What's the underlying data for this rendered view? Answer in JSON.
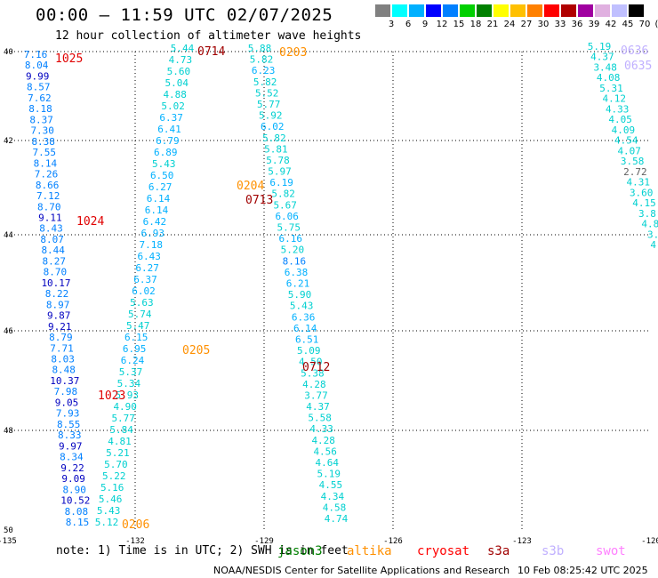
{
  "header": {
    "title": "00:00 – 11:59 UTC 02/07/2025",
    "subtitle": "12 hour collection of altimeter wave heights"
  },
  "colorbar": {
    "colors": [
      "#808080",
      "#00ffff",
      "#00b0ff",
      "#0000ff",
      "#0080ff",
      "#00d000",
      "#008000",
      "#ffff00",
      "#ffc000",
      "#ff8000",
      "#ff0000",
      "#b00000",
      "#a000a0",
      "#e0b0e0",
      "#c0c0ff",
      "#000000"
    ],
    "labels": [
      "3",
      "6",
      "9",
      "12",
      "15",
      "18",
      "21",
      "24",
      "27",
      "30",
      "33",
      "36",
      "39",
      "42",
      "45",
      "70",
      "(ft)"
    ]
  },
  "map": {
    "lon_ticks": [
      "-135",
      "-132",
      "-129",
      "-126",
      "-123",
      "-120"
    ],
    "lat_ticks": [
      "40",
      "42",
      "44",
      "46",
      "48",
      "50"
    ],
    "tracks": [
      {
        "color": "#0000c0",
        "points": [
          {
            "v": "7.16",
            "c": "#0080ff"
          },
          {
            "v": "8.04",
            "c": "#0080ff"
          },
          {
            "v": "9.99",
            "c": "#0000c0"
          },
          {
            "v": "8.57",
            "c": "#0080ff"
          },
          {
            "v": "7.62",
            "c": "#0080ff"
          },
          {
            "v": "8.18",
            "c": "#0080ff"
          },
          {
            "v": "8.37",
            "c": "#0080ff"
          },
          {
            "v": "7.30",
            "c": "#0080ff"
          },
          {
            "v": "8.38",
            "c": "#0080ff"
          },
          {
            "v": "7.55",
            "c": "#0080ff"
          },
          {
            "v": "8.14",
            "c": "#0080ff"
          },
          {
            "v": "7.26",
            "c": "#0080ff"
          },
          {
            "v": "8.66",
            "c": "#0080ff"
          },
          {
            "v": "7.12",
            "c": "#0080ff"
          },
          {
            "v": "8.70",
            "c": "#0080ff"
          },
          {
            "v": "9.11",
            "c": "#0000c0"
          },
          {
            "v": "8.43",
            "c": "#0080ff"
          },
          {
            "v": "8.07",
            "c": "#0080ff"
          },
          {
            "v": "8.44",
            "c": "#0080ff"
          },
          {
            "v": "8.27",
            "c": "#0080ff"
          },
          {
            "v": "8.70",
            "c": "#0080ff"
          },
          {
            "v": "10.17",
            "c": "#0000c0"
          },
          {
            "v": "8.22",
            "c": "#0080ff"
          },
          {
            "v": "8.97",
            "c": "#0080ff"
          },
          {
            "v": "9.87",
            "c": "#0000c0"
          },
          {
            "v": "9.21",
            "c": "#0000c0"
          },
          {
            "v": "8.79",
            "c": "#0080ff"
          },
          {
            "v": "7.71",
            "c": "#0080ff"
          },
          {
            "v": "8.03",
            "c": "#0080ff"
          },
          {
            "v": "8.48",
            "c": "#0080ff"
          },
          {
            "v": "10.37",
            "c": "#0000c0"
          },
          {
            "v": "7.98",
            "c": "#0080ff"
          },
          {
            "v": "9.05",
            "c": "#0000c0"
          },
          {
            "v": "7.93",
            "c": "#0080ff"
          },
          {
            "v": "8.55",
            "c": "#0080ff"
          },
          {
            "v": "8.33",
            "c": "#0080ff"
          },
          {
            "v": "9.97",
            "c": "#0000c0"
          },
          {
            "v": "8.34",
            "c": "#0080ff"
          },
          {
            "v": "9.22",
            "c": "#0000c0"
          },
          {
            "v": "9.09",
            "c": "#0000c0"
          },
          {
            "v": "8.90",
            "c": "#0080ff"
          },
          {
            "v": "10.52",
            "c": "#0000c0"
          },
          {
            "v": "8.08",
            "c": "#0080ff"
          },
          {
            "v": "8.15",
            "c": "#0080ff"
          }
        ]
      },
      {
        "color": "#00b0ff",
        "points": [
          {
            "v": "5.44",
            "c": "#00d0d0"
          },
          {
            "v": "4.73",
            "c": "#00d0d0"
          },
          {
            "v": "5.60",
            "c": "#00d0d0"
          },
          {
            "v": "5.04",
            "c": "#00d0d0"
          },
          {
            "v": "4.88",
            "c": "#00d0d0"
          },
          {
            "v": "5.02",
            "c": "#00d0d0"
          },
          {
            "v": "6.37",
            "c": "#00b0ff"
          },
          {
            "v": "6.41",
            "c": "#00b0ff"
          },
          {
            "v": "6.79",
            "c": "#00b0ff"
          },
          {
            "v": "6.89",
            "c": "#00b0ff"
          },
          {
            "v": "5.43",
            "c": "#00d0d0"
          },
          {
            "v": "6.50",
            "c": "#00b0ff"
          },
          {
            "v": "6.27",
            "c": "#00b0ff"
          },
          {
            "v": "6.14",
            "c": "#00b0ff"
          },
          {
            "v": "6.14",
            "c": "#00b0ff"
          },
          {
            "v": "6.42",
            "c": "#00b0ff"
          },
          {
            "v": "6.93",
            "c": "#00b0ff"
          },
          {
            "v": "7.18",
            "c": "#00b0ff"
          },
          {
            "v": "6.43",
            "c": "#00b0ff"
          },
          {
            "v": "6.27",
            "c": "#00b0ff"
          },
          {
            "v": "6.37",
            "c": "#00b0ff"
          },
          {
            "v": "6.02",
            "c": "#00b0ff"
          },
          {
            "v": "5.63",
            "c": "#00d0d0"
          },
          {
            "v": "5.74",
            "c": "#00d0d0"
          },
          {
            "v": "5.47",
            "c": "#00d0d0"
          },
          {
            "v": "6.15",
            "c": "#00b0ff"
          },
          {
            "v": "6.95",
            "c": "#00b0ff"
          },
          {
            "v": "6.24",
            "c": "#00b0ff"
          },
          {
            "v": "5.37",
            "c": "#00d0d0"
          },
          {
            "v": "5.34",
            "c": "#00d0d0"
          },
          {
            "v": "5.93",
            "c": "#00d0d0"
          },
          {
            "v": "4.90",
            "c": "#00d0d0"
          },
          {
            "v": "5.77",
            "c": "#00d0d0"
          },
          {
            "v": "5.84",
            "c": "#00d0d0"
          },
          {
            "v": "4.81",
            "c": "#00d0d0"
          },
          {
            "v": "5.21",
            "c": "#00d0d0"
          },
          {
            "v": "5.70",
            "c": "#00d0d0"
          },
          {
            "v": "5.22",
            "c": "#00d0d0"
          },
          {
            "v": "5.16",
            "c": "#00d0d0"
          },
          {
            "v": "5.46",
            "c": "#00d0d0"
          },
          {
            "v": "5.43",
            "c": "#00d0d0"
          },
          {
            "v": "5.12",
            "c": "#00d0d0"
          }
        ]
      },
      {
        "color": "#00d0d0",
        "points": [
          {
            "v": "5.88",
            "c": "#00d0d0"
          },
          {
            "v": "5.82",
            "c": "#00d0d0"
          },
          {
            "v": "6.23",
            "c": "#00b0ff"
          },
          {
            "v": "5.82",
            "c": "#00d0d0"
          },
          {
            "v": "5.52",
            "c": "#00d0d0"
          },
          {
            "v": "5.77",
            "c": "#00d0d0"
          },
          {
            "v": "5.92",
            "c": "#00d0d0"
          },
          {
            "v": "6.02",
            "c": "#00b0ff"
          },
          {
            "v": "5.82",
            "c": "#00d0d0"
          },
          {
            "v": "5.81",
            "c": "#00d0d0"
          },
          {
            "v": "5.78",
            "c": "#00d0d0"
          },
          {
            "v": "5.97",
            "c": "#00d0d0"
          },
          {
            "v": "6.19",
            "c": "#00b0ff"
          },
          {
            "v": "5.82",
            "c": "#00d0d0"
          },
          {
            "v": "5.67",
            "c": "#00d0d0"
          },
          {
            "v": "6.06",
            "c": "#00b0ff"
          },
          {
            "v": "5.75",
            "c": "#00d0d0"
          },
          {
            "v": "6.16",
            "c": "#00b0ff"
          },
          {
            "v": "5.20",
            "c": "#00d0d0"
          },
          {
            "v": "8.16",
            "c": "#0080ff"
          },
          {
            "v": "6.38",
            "c": "#00b0ff"
          },
          {
            "v": "6.21",
            "c": "#00b0ff"
          },
          {
            "v": "5.90",
            "c": "#00d0d0"
          },
          {
            "v": "5.43",
            "c": "#00d0d0"
          },
          {
            "v": "6.36",
            "c": "#00b0ff"
          },
          {
            "v": "6.14",
            "c": "#00b0ff"
          },
          {
            "v": "6.51",
            "c": "#00b0ff"
          },
          {
            "v": "5.09",
            "c": "#00d0d0"
          },
          {
            "v": "4.50",
            "c": "#00d0d0"
          },
          {
            "v": "5.38",
            "c": "#00d0d0"
          },
          {
            "v": "4.28",
            "c": "#00d0d0"
          },
          {
            "v": "3.77",
            "c": "#00d0d0"
          },
          {
            "v": "4.37",
            "c": "#00d0d0"
          },
          {
            "v": "5.58",
            "c": "#00d0d0"
          },
          {
            "v": "4.33",
            "c": "#00d0d0"
          },
          {
            "v": "4.28",
            "c": "#00d0d0"
          },
          {
            "v": "4.56",
            "c": "#00d0d0"
          },
          {
            "v": "4.64",
            "c": "#00d0d0"
          },
          {
            "v": "5.19",
            "c": "#00d0d0"
          },
          {
            "v": "4.55",
            "c": "#00d0d0"
          },
          {
            "v": "4.34",
            "c": "#00d0d0"
          },
          {
            "v": "4.58",
            "c": "#00d0d0"
          },
          {
            "v": "4.74",
            "c": "#00d0d0"
          }
        ]
      },
      {
        "color": "#00d0d0",
        "points": [
          {
            "v": "5.19",
            "c": "#00d0d0"
          },
          {
            "v": "4.37",
            "c": "#00d0d0"
          },
          {
            "v": "3.48",
            "c": "#00d0d0"
          },
          {
            "v": "4.08",
            "c": "#00d0d0"
          },
          {
            "v": "5.31",
            "c": "#00d0d0"
          },
          {
            "v": "4.12",
            "c": "#00d0d0"
          },
          {
            "v": "4.33",
            "c": "#00d0d0"
          },
          {
            "v": "4.05",
            "c": "#00d0d0"
          },
          {
            "v": "4.09",
            "c": "#00d0d0"
          },
          {
            "v": "4.54",
            "c": "#00d0d0"
          },
          {
            "v": "4.07",
            "c": "#00d0d0"
          },
          {
            "v": "3.58",
            "c": "#00d0d0"
          },
          {
            "v": "2.72",
            "c": "#606060"
          },
          {
            "v": "4.31",
            "c": "#00d0d0"
          },
          {
            "v": "3.60",
            "c": "#00d0d0"
          },
          {
            "v": "4.15",
            "c": "#00d0d0"
          },
          {
            "v": "3.8",
            "c": "#00d0d0"
          },
          {
            "v": "4.8",
            "c": "#00d0d0"
          },
          {
            "v": "3.",
            "c": "#00d0d0"
          },
          {
            "v": "4.",
            "c": "#00d0d0"
          }
        ]
      }
    ],
    "time_labels": [
      {
        "text": "1025",
        "color": "#e00000"
      },
      {
        "text": "1024",
        "color": "#e00000"
      },
      {
        "text": "1023",
        "color": "#e00000"
      },
      {
        "text": "0714",
        "color": "#a00000"
      },
      {
        "text": "0203",
        "color": "#ff9000"
      },
      {
        "text": "0204",
        "color": "#ff9000"
      },
      {
        "text": "0713",
        "color": "#a00000"
      },
      {
        "text": "0205",
        "color": "#ff9000"
      },
      {
        "text": "0712",
        "color": "#a00000"
      },
      {
        "text": "0206",
        "color": "#ff9000"
      },
      {
        "text": "0636",
        "color": "#c0b0ff"
      },
      {
        "text": "0635",
        "color": "#c0b0ff"
      }
    ]
  },
  "note": "note: 1) Time is in UTC; 2) SWH is in feet",
  "satellites": [
    {
      "name": "jason3",
      "color": "#008000"
    },
    {
      "name": "altika",
      "color": "#ff9000"
    },
    {
      "name": "cryosat",
      "color": "#ff0000"
    },
    {
      "name": "s3a",
      "color": "#a00000"
    },
    {
      "name": "s3b",
      "color": "#c0b0ff"
    },
    {
      "name": "swot",
      "color": "#ff80ff"
    }
  ],
  "footer": {
    "credit": "NOAA/NESDIS Center for Satellite Applications and Research",
    "timestamp": "10 Feb 08:25:42 UTC 2025"
  }
}
